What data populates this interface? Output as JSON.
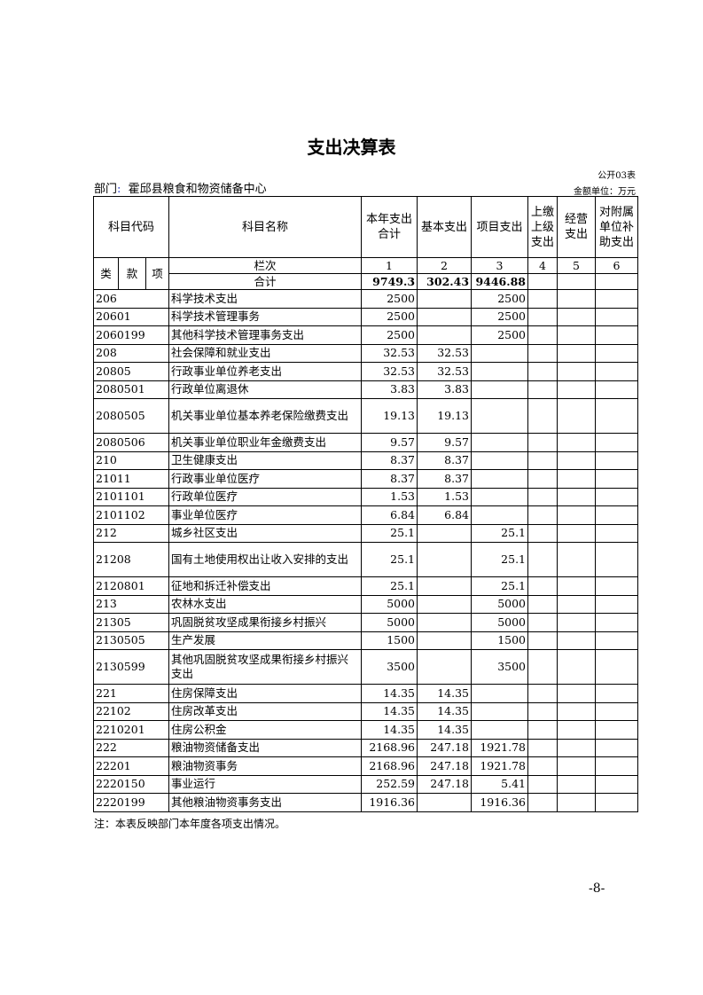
{
  "title": "支出决算表",
  "table_no": "公开03表",
  "department_label": "部门",
  "department_colon": ":",
  "department": "霍邱县粮食和物资储备中心",
  "unit": "金额单位：万元",
  "headers": {
    "code": "科目代码",
    "name": "科目名称",
    "col1": "本年支出合计",
    "col2": "基本支出",
    "col3": "项目支出",
    "col4": "上缴上级支出",
    "col5": "经营支出",
    "col6": "对附属单位补助支出",
    "lei": "类",
    "kuan": "款",
    "xiang": "项",
    "lanci": "栏次",
    "n1": "1",
    "n2": "2",
    "n3": "3",
    "n4": "4",
    "n5": "5",
    "n6": "6"
  },
  "total": {
    "label": "合计",
    "c1": "9749.3",
    "c2": "302.43",
    "c3": "9446.88"
  },
  "rows": [
    {
      "code": "206",
      "name": "科学技术支出",
      "c1": "2500",
      "c2": "",
      "c3": "2500"
    },
    {
      "code": "20601",
      "name": "科学技术管理事务",
      "c1": "2500",
      "c2": "",
      "c3": "2500"
    },
    {
      "code": "2060199",
      "name": "其他科学技术管理事务支出",
      "c1": "2500",
      "c2": "",
      "c3": "2500"
    },
    {
      "code": "208",
      "name": "社会保障和就业支出",
      "c1": "32.53",
      "c2": "32.53",
      "c3": ""
    },
    {
      "code": "20805",
      "name": "行政事业单位养老支出",
      "c1": "32.53",
      "c2": "32.53",
      "c3": ""
    },
    {
      "code": "2080501",
      "name": "行政单位离退休",
      "c1": "3.83",
      "c2": "3.83",
      "c3": ""
    },
    {
      "code": "2080505",
      "name": "机关事业单位基本养老保险缴费支出",
      "c1": "19.13",
      "c2": "19.13",
      "c3": "",
      "double": true
    },
    {
      "code": "2080506",
      "name": "机关事业单位职业年金缴费支出",
      "c1": "9.57",
      "c2": "9.57",
      "c3": ""
    },
    {
      "code": "210",
      "name": "卫生健康支出",
      "c1": "8.37",
      "c2": "8.37",
      "c3": ""
    },
    {
      "code": "21011",
      "name": "行政事业单位医疗",
      "c1": "8.37",
      "c2": "8.37",
      "c3": ""
    },
    {
      "code": "2101101",
      "name": "行政单位医疗",
      "c1": "1.53",
      "c2": "1.53",
      "c3": ""
    },
    {
      "code": "2101102",
      "name": "事业单位医疗",
      "c1": "6.84",
      "c2": "6.84",
      "c3": ""
    },
    {
      "code": "212",
      "name": "城乡社区支出",
      "c1": "25.1",
      "c2": "",
      "c3": "25.1"
    },
    {
      "code": "21208",
      "name": "国有土地使用权出让收入安排的支出",
      "c1": "25.1",
      "c2": "",
      "c3": "25.1",
      "double": true
    },
    {
      "code": "2120801",
      "name": "征地和拆迁补偿支出",
      "c1": "25.1",
      "c2": "",
      "c3": "25.1"
    },
    {
      "code": "213",
      "name": "农林水支出",
      "c1": "5000",
      "c2": "",
      "c3": "5000"
    },
    {
      "code": "21305",
      "name": "巩固脱贫攻坚成果衔接乡村振兴",
      "c1": "5000",
      "c2": "",
      "c3": "5000"
    },
    {
      "code": "2130505",
      "name": "生产发展",
      "c1": "1500",
      "c2": "",
      "c3": "1500"
    },
    {
      "code": "2130599",
      "name": "其他巩固脱贫攻坚成果衔接乡村振兴支出",
      "c1": "3500",
      "c2": "",
      "c3": "3500",
      "double": true
    },
    {
      "code": "221",
      "name": "住房保障支出",
      "c1": "14.35",
      "c2": "14.35",
      "c3": ""
    },
    {
      "code": "22102",
      "name": "住房改革支出",
      "c1": "14.35",
      "c2": "14.35",
      "c3": ""
    },
    {
      "code": "2210201",
      "name": "住房公积金",
      "c1": "14.35",
      "c2": "14.35",
      "c3": ""
    },
    {
      "code": "222",
      "name": "粮油物资储备支出",
      "c1": "2168.96",
      "c2": "247.18",
      "c3": "1921.78"
    },
    {
      "code": "22201",
      "name": "粮油物资事务",
      "c1": "2168.96",
      "c2": "247.18",
      "c3": "1921.78"
    },
    {
      "code": "2220150",
      "name": "事业运行",
      "c1": "252.59",
      "c2": "247.18",
      "c3": "5.41"
    },
    {
      "code": "2220199",
      "name": "其他粮油物资事务支出",
      "c1": "1916.36",
      "c2": "",
      "c3": "1916.36"
    }
  ],
  "note": "注：本表反映部门本年度各项支出情况。",
  "page_number": "-8-"
}
